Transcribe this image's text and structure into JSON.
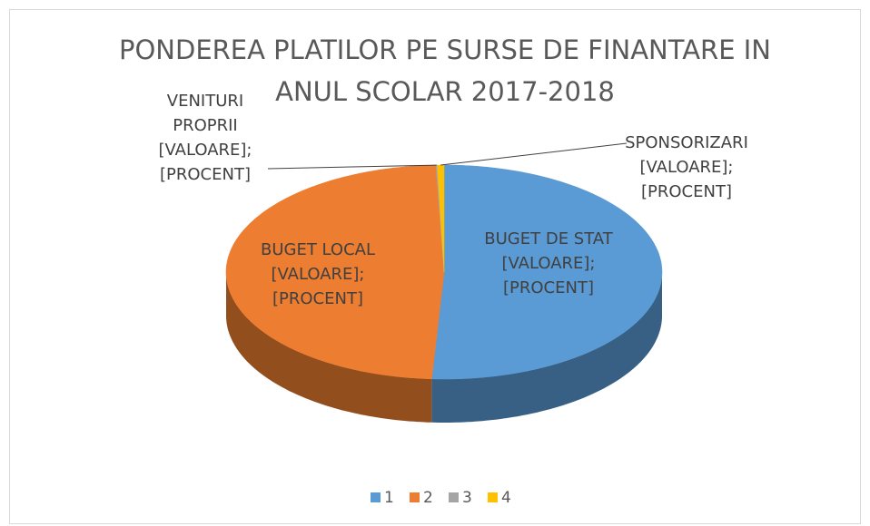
{
  "chart_data": {
    "type": "pie3d",
    "title": "PONDEREA PLATILOR PE SURSE DE FINANTARE IN ANUL SCOLAR 2017-2018",
    "categories": [
      "1",
      "2",
      "3",
      "4"
    ],
    "values": [
      50.9,
      48.5,
      0.1,
      0.5
    ],
    "colors": [
      "#5b9bd5",
      "#ed7d31",
      "#a5a5a5",
      "#ffc000"
    ],
    "labels": [
      "BUGET DE STAT [VALOARE]; [PROCENT]",
      "BUGET LOCAL [VALOARE]; [PROCENT]",
      "VENITURI PROPRII [VALOARE]; [PROCENT]",
      "SPONSORIZARI [VALOARE]; [PROCENT]"
    ],
    "legend": "bottom"
  }
}
